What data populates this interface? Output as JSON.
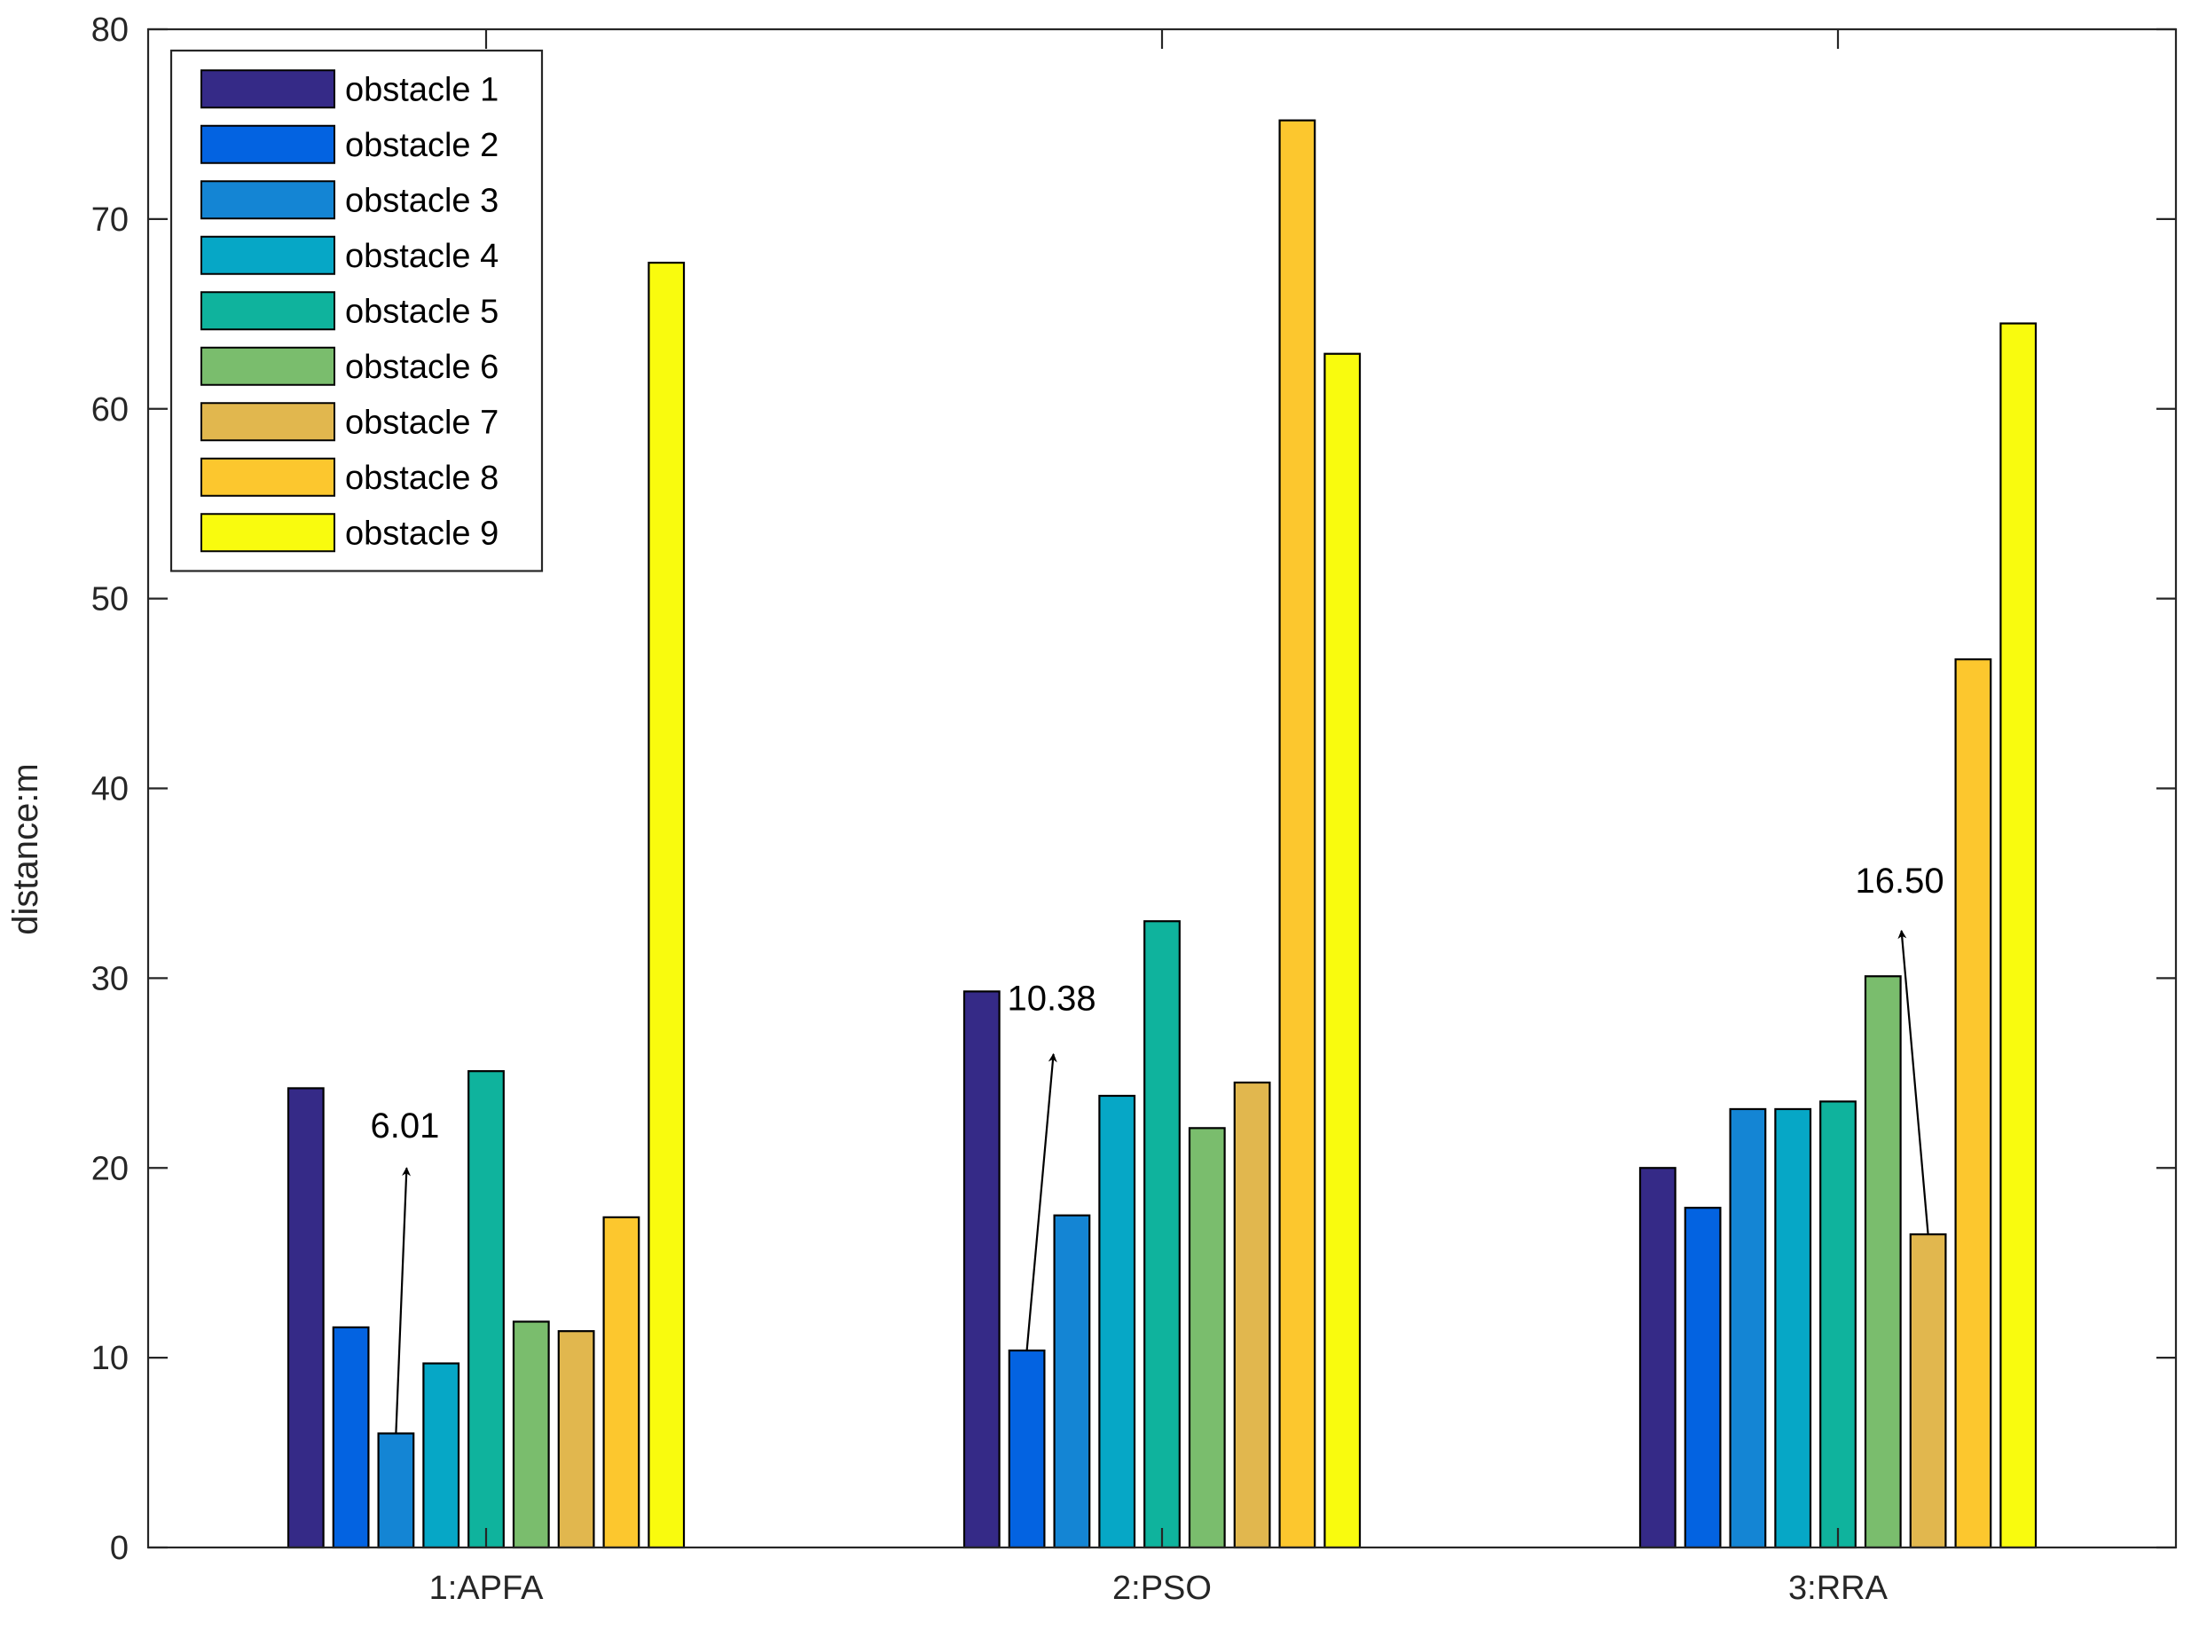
{
  "chart_data": {
    "type": "bar",
    "title": "",
    "xlabel": "",
    "ylabel": "distance:m",
    "ylim": [
      0,
      80
    ],
    "yticks": [
      0,
      10,
      20,
      30,
      40,
      50,
      60,
      70,
      80
    ],
    "categories": [
      "1:APFA",
      "2:PSO",
      "3:RRA"
    ],
    "series": [
      {
        "name": "obstacle 1",
        "color": "#352a87",
        "values": [
          24.2,
          29.3,
          20.0
        ]
      },
      {
        "name": "obstacle 2",
        "color": "#0363e1",
        "values": [
          11.6,
          10.38,
          17.9
        ]
      },
      {
        "name": "obstacle 3",
        "color": "#1485d4",
        "values": [
          6.01,
          17.5,
          23.1
        ]
      },
      {
        "name": "obstacle 4",
        "color": "#06a7c6",
        "values": [
          9.7,
          23.8,
          23.1
        ]
      },
      {
        "name": "obstacle 5",
        "color": "#0fb39d",
        "values": [
          25.1,
          33.0,
          23.5
        ]
      },
      {
        "name": "obstacle 6",
        "color": "#7abd6d",
        "values": [
          11.9,
          22.1,
          30.1
        ]
      },
      {
        "name": "obstacle 7",
        "color": "#e1b74e",
        "values": [
          11.4,
          24.5,
          16.5
        ]
      },
      {
        "name": "obstacle 8",
        "color": "#fcc72e",
        "values": [
          17.4,
          75.2,
          46.8
        ]
      },
      {
        "name": "obstacle 9",
        "color": "#f9fb0e",
        "values": [
          67.7,
          62.9,
          64.5
        ]
      }
    ],
    "legend": {
      "placement": "top-left",
      "box": true
    },
    "grid": false,
    "annotations": [
      {
        "text": "6.01",
        "category": "1:APFA",
        "series": "obstacle 3"
      },
      {
        "text": "10.38",
        "category": "2:PSO",
        "series": "obstacle 2"
      },
      {
        "text": "16.50",
        "category": "3:RRA",
        "series": "obstacle 7"
      }
    ]
  }
}
